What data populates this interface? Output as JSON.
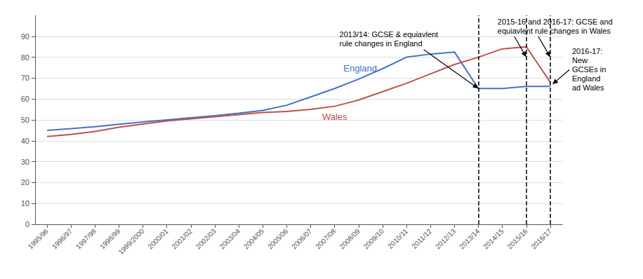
{
  "chart_data": {
    "type": "line",
    "categories": [
      "1995/96",
      "1996/97",
      "1997/98",
      "1998/99",
      "1999/2000",
      "2000/01",
      "2001/02",
      "2002/03",
      "2003/04",
      "2004/05",
      "2005/06",
      "2006/07",
      "2007/08",
      "2008/09",
      "2009/10",
      "2010/11",
      "2011/12",
      "2012/13",
      "2013/14",
      "2014/15",
      "2015/16",
      "2016/17"
    ],
    "series": [
      {
        "name": "England",
        "color": "#4472C4",
        "values": [
          45.0,
          45.8,
          46.7,
          47.9,
          49.0,
          50.0,
          51.0,
          52.0,
          53.2,
          54.5,
          57.0,
          61.0,
          65.0,
          69.5,
          74.5,
          80.0,
          81.5,
          82.5,
          65.0,
          65.0,
          66.0,
          66.0
        ]
      },
      {
        "name": "Wales",
        "color": "#C0504D",
        "values": [
          42.0,
          43.0,
          44.5,
          46.5,
          48.0,
          49.5,
          50.5,
          51.5,
          52.5,
          53.5,
          54.0,
          55.0,
          56.5,
          59.5,
          63.5,
          67.5,
          72.0,
          76.5,
          80.0,
          84.0,
          85.0,
          68.0
        ]
      }
    ],
    "ylim": [
      0,
      100
    ],
    "yticks": [
      0,
      10,
      20,
      30,
      40,
      50,
      60,
      70,
      80,
      90
    ],
    "grid": true,
    "vertical_lines": {
      "x": [
        "2013/14",
        "2015/16",
        "2016/17"
      ],
      "color": "black",
      "line_style": "dashed"
    },
    "annotations": [
      {
        "text": "2013/14: GCSE & equiavlent\nrule changes in England",
        "x": "2013/14"
      },
      {
        "text": "2015-16 and 2016-17: GCSE and\nequiavlent rule changes in Wales",
        "x": [
          "2015/16",
          "2016/17"
        ]
      },
      {
        "text": "2016-17:\nNew\nGCSEs in\nEngland\nad Wales",
        "x": "2016/17"
      }
    ]
  }
}
